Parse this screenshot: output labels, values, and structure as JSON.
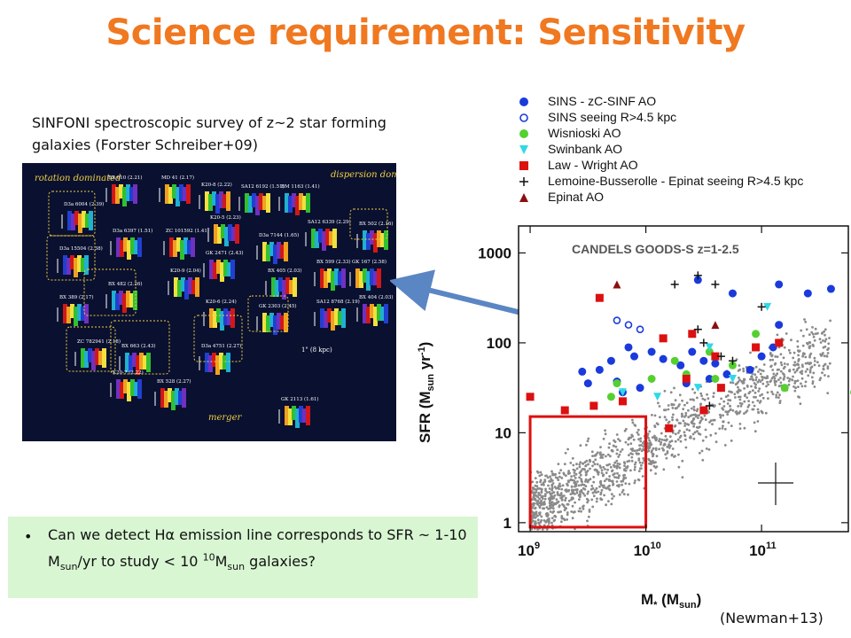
{
  "slide": {
    "title": "Science requirement: Sensitivity",
    "caption": "SINFONI spectroscopic survey of z~2 star forming galaxies (Forster Schreiber+09)",
    "bullet": {
      "part1": "Can we detect Hα emission line corresponds to SFR ~ 1-10 M",
      "sub1": "sun",
      "part2": "/yr to study < 10 ",
      "sup1": "10",
      "part3": "M",
      "sub2": "sun",
      "part4": "  galaxies?"
    },
    "credit": "(Newman+13)"
  },
  "sinfoni": {
    "corner_labels": {
      "rotation": "rotation dominated",
      "dispersion": "dispersion dominated",
      "merger": "merger",
      "scale": "1\" (8 kpc)"
    },
    "galaxies": [
      {
        "name": "BX 610 (2.21)"
      },
      {
        "name": "MD 41 (2.17)"
      },
      {
        "name": "K20-8 (2.22)"
      },
      {
        "name": "SA12 6192 (1.51)"
      },
      {
        "name": "BM 1163 (1.41)"
      },
      {
        "name": "D3a 6004 (2.39)"
      },
      {
        "name": "D3a 6397 (1.51)"
      },
      {
        "name": "ZC 101592 (1.41)"
      },
      {
        "name": "K20-5 (2.23)"
      },
      {
        "name": "D3a 7144 (1.65)"
      },
      {
        "name": "SA12 6339 (2.29)"
      },
      {
        "name": "BX 502 (2.16)"
      },
      {
        "name": "D3a 15504 (2.38)"
      },
      {
        "name": "GK 2471 (2.43)"
      },
      {
        "name": "BX 599 (2.33)"
      },
      {
        "name": "GK 167 (2.58)"
      },
      {
        "name": "K20-9 (2.04)"
      },
      {
        "name": "BX 405 (2.03)"
      },
      {
        "name": "BX 482 (2.26)"
      },
      {
        "name": "SA12 8768 (2.19)"
      },
      {
        "name": "BX 404 (2.03)"
      },
      {
        "name": "BX 389 (2.17)"
      },
      {
        "name": "K20-6 (2.24)"
      },
      {
        "name": "GK 2303 (2.45)"
      },
      {
        "name": "ZC 782941 (2.18)"
      },
      {
        "name": "BX 663 (2.43)"
      },
      {
        "name": "D3a 4751 (2.27)"
      },
      {
        "name": "K20-7 (2.22)"
      },
      {
        "name": "BX 528 (2.27)"
      },
      {
        "name": "GK 2113 (1.61)"
      }
    ]
  },
  "colors": {
    "title": "#f07820",
    "sins_ao": "#1a3adc",
    "wisnioski": "#55d030",
    "swinbank": "#30d8e8",
    "law_wright": "#dc1010",
    "epinat": "#8a1010",
    "candels": "#8a8a8a",
    "highlight_box": "#dc1010",
    "arrow": "#5b86c4"
  },
  "chart_data": {
    "type": "scatter",
    "title": "CANDELS GOODS-S z=1-2.5",
    "xlabel": "M* (Msun)",
    "ylabel": "SFR (Msun yr-1)",
    "xscale": "log",
    "yscale": "log",
    "xlim": [
      8.9,
      11.75
    ],
    "ylim": [
      -0.1,
      3.3
    ],
    "x_ticks": [
      {
        "value": 9,
        "label": "10",
        "sup": "9"
      },
      {
        "value": 10,
        "label": "10",
        "sup": "10"
      },
      {
        "value": 11,
        "label": "10",
        "sup": "11"
      }
    ],
    "y_ticks": [
      {
        "value": 0,
        "label": "1"
      },
      {
        "value": 1,
        "label": "10"
      },
      {
        "value": 2,
        "label": "100"
      },
      {
        "value": 3,
        "label": "1000"
      }
    ],
    "legend_placement": "top, above plot",
    "series": [
      {
        "name": "SINS - zC-SINF AO",
        "marker": "filled-circle",
        "color": "#1a3adc",
        "points": [
          [
            9.85,
            1.95
          ],
          [
            9.9,
            1.85
          ],
          [
            9.7,
            1.8
          ],
          [
            9.6,
            1.7
          ],
          [
            9.45,
            1.68
          ],
          [
            9.5,
            1.55
          ],
          [
            9.75,
            1.57
          ],
          [
            10.05,
            1.9
          ],
          [
            10.15,
            1.82
          ],
          [
            10.3,
            1.75
          ],
          [
            10.4,
            1.9
          ],
          [
            10.5,
            1.8
          ],
          [
            10.6,
            1.77
          ],
          [
            10.55,
            1.6
          ],
          [
            10.7,
            1.65
          ],
          [
            10.9,
            1.7
          ],
          [
            11.0,
            1.85
          ],
          [
            11.15,
            2.2
          ],
          [
            11.1,
            1.95
          ],
          [
            11.4,
            2.55
          ],
          [
            11.6,
            2.6
          ],
          [
            11.15,
            2.65
          ],
          [
            10.75,
            2.55
          ],
          [
            10.45,
            2.7
          ],
          [
            9.95,
            1.5
          ],
          [
            10.35,
            1.55
          ],
          [
            9.8,
            1.45
          ]
        ]
      },
      {
        "name": "SINS seeing R>4.5 kpc",
        "marker": "open-circle",
        "color": "#1a3adc",
        "points": [
          [
            9.75,
            2.25
          ],
          [
            9.85,
            2.2
          ],
          [
            9.95,
            2.15
          ]
        ]
      },
      {
        "name": "Wisnioski AO",
        "marker": "filled-circle",
        "color": "#55d030",
        "points": [
          [
            9.7,
            1.4
          ],
          [
            9.75,
            1.55
          ],
          [
            10.05,
            1.6
          ],
          [
            10.25,
            1.8
          ],
          [
            10.35,
            1.65
          ],
          [
            10.6,
            1.6
          ],
          [
            10.75,
            1.75
          ],
          [
            10.95,
            2.1
          ],
          [
            11.2,
            1.5
          ],
          [
            11.8,
            1.45
          ],
          [
            10.55,
            1.9
          ]
        ]
      },
      {
        "name": "Swinbank AO",
        "marker": "triangle-down",
        "color": "#30d8e8",
        "points": [
          [
            9.8,
            1.45
          ],
          [
            10.1,
            1.4
          ],
          [
            10.45,
            1.5
          ],
          [
            10.75,
            1.6
          ],
          [
            11.05,
            2.4
          ],
          [
            10.55,
            1.95
          ]
        ]
      },
      {
        "name": "Law - Wright AO",
        "marker": "square",
        "color": "#dc1010",
        "points": [
          [
            9.0,
            1.4
          ],
          [
            9.3,
            1.25
          ],
          [
            9.55,
            1.3
          ],
          [
            9.8,
            1.35
          ],
          [
            10.2,
            1.05
          ],
          [
            10.5,
            1.25
          ],
          [
            9.6,
            2.5
          ],
          [
            10.15,
            2.05
          ],
          [
            10.4,
            2.1
          ],
          [
            10.6,
            1.85
          ],
          [
            10.95,
            1.95
          ],
          [
            11.15,
            2.0
          ],
          [
            10.35,
            1.6
          ],
          [
            10.65,
            1.5
          ]
        ]
      },
      {
        "name": "Lemoine-Busserolle - Epinat seeing R>4.5 kpc",
        "marker": "plus",
        "color": "#111111",
        "points": [
          [
            10.25,
            2.65
          ],
          [
            10.45,
            2.75
          ],
          [
            10.6,
            2.65
          ],
          [
            10.45,
            2.15
          ],
          [
            10.5,
            2.0
          ],
          [
            10.65,
            1.85
          ],
          [
            10.75,
            1.8
          ],
          [
            11.0,
            2.4
          ],
          [
            10.55,
            1.3
          ]
        ]
      },
      {
        "name": "Epinat AO",
        "marker": "triangle-up",
        "color": "#8a1010",
        "points": [
          [
            9.75,
            2.65
          ],
          [
            10.6,
            2.2
          ]
        ]
      }
    ],
    "background": {
      "name": "CANDELS GOODS-S z=1-2.5 sample",
      "count": 1400,
      "note": "dense grey cloud of galaxies following the main sequence"
    }
  }
}
